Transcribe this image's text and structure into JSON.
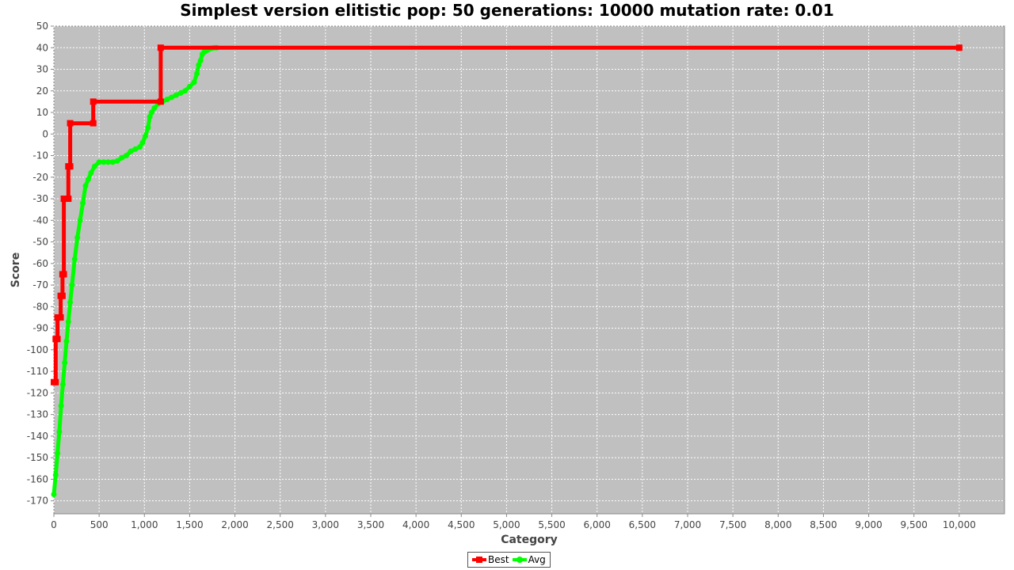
{
  "chart_data": {
    "type": "line",
    "title": "Simplest version elitistic pop: 50 generations: 10000 mutation rate: 0.01",
    "xlabel": "Category",
    "ylabel": "Score",
    "xlim": [
      0,
      10500
    ],
    "ylim": [
      -176,
      50
    ],
    "x_ticks": [
      0,
      500,
      1000,
      1500,
      2000,
      2500,
      3000,
      3500,
      4000,
      4500,
      5000,
      5500,
      6000,
      6500,
      7000,
      7500,
      8000,
      8500,
      9000,
      9500,
      10000
    ],
    "x_tick_labels": [
      "0",
      "500",
      "1,000",
      "1,500",
      "2,000",
      "2,500",
      "3,000",
      "3,500",
      "4,000",
      "4,500",
      "5,000",
      "5,500",
      "6,000",
      "6,500",
      "7,000",
      "7,500",
      "8,000",
      "8,500",
      "9,000",
      "9,500",
      "10,000"
    ],
    "y_ticks": [
      50,
      40,
      30,
      20,
      10,
      0,
      -10,
      -20,
      -30,
      -40,
      -50,
      -60,
      -70,
      -80,
      -90,
      -100,
      -110,
      -120,
      -130,
      -140,
      -150,
      -160,
      -170
    ],
    "y_tick_labels": [
      "50",
      "40",
      "30",
      "20",
      "10",
      "0",
      "-10",
      "-20",
      "-30",
      "-40",
      "-50",
      "-60",
      "-70",
      "-80",
      "-90",
      "-100",
      "-110",
      "-120",
      "-130",
      "-140",
      "-150",
      "-160",
      "-170"
    ],
    "grid": true,
    "legend_position": "bottom-center",
    "series": [
      {
        "name": "Best",
        "color": "#ff0000",
        "marker": "square",
        "x": [
          0,
          20,
          20,
          40,
          40,
          75,
          75,
          95,
          95,
          110,
          110,
          160,
          160,
          180,
          180,
          435,
          435,
          1180,
          1180,
          10000
        ],
        "y": [
          -115,
          -115,
          -95,
          -95,
          -85,
          -85,
          -75,
          -75,
          -65,
          -65,
          -30,
          -30,
          -15,
          -15,
          5,
          5,
          15,
          15,
          40,
          40
        ]
      },
      {
        "name": "Avg",
        "color": "#00ff00",
        "marker": "circle",
        "x": [
          0,
          20,
          40,
          60,
          80,
          100,
          120,
          140,
          160,
          180,
          200,
          230,
          260,
          290,
          320,
          350,
          380,
          410,
          450,
          500,
          550,
          600,
          650,
          700,
          750,
          800,
          850,
          900,
          950,
          980,
          1010,
          1040,
          1060,
          1080,
          1110,
          1150,
          1200,
          1250,
          1300,
          1350,
          1400,
          1450,
          1500,
          1550,
          1580,
          1600,
          1620,
          1640,
          1660,
          1680,
          1700,
          1720,
          1750,
          1780,
          1800
        ],
        "y": [
          -167,
          -158,
          -148,
          -138,
          -126,
          -116,
          -106,
          -96,
          -87,
          -78,
          -70,
          -58,
          -48,
          -40,
          -32,
          -24,
          -21,
          -18,
          -15,
          -13,
          -13,
          -13,
          -13,
          -12.5,
          -11,
          -10,
          -8,
          -7,
          -6,
          -4,
          -1,
          3,
          8,
          10,
          12,
          14,
          15,
          16,
          17,
          18,
          19,
          20,
          22,
          24,
          28,
          32,
          34,
          37,
          38,
          38.5,
          39,
          39.5,
          39.8,
          40,
          40
        ]
      }
    ]
  }
}
